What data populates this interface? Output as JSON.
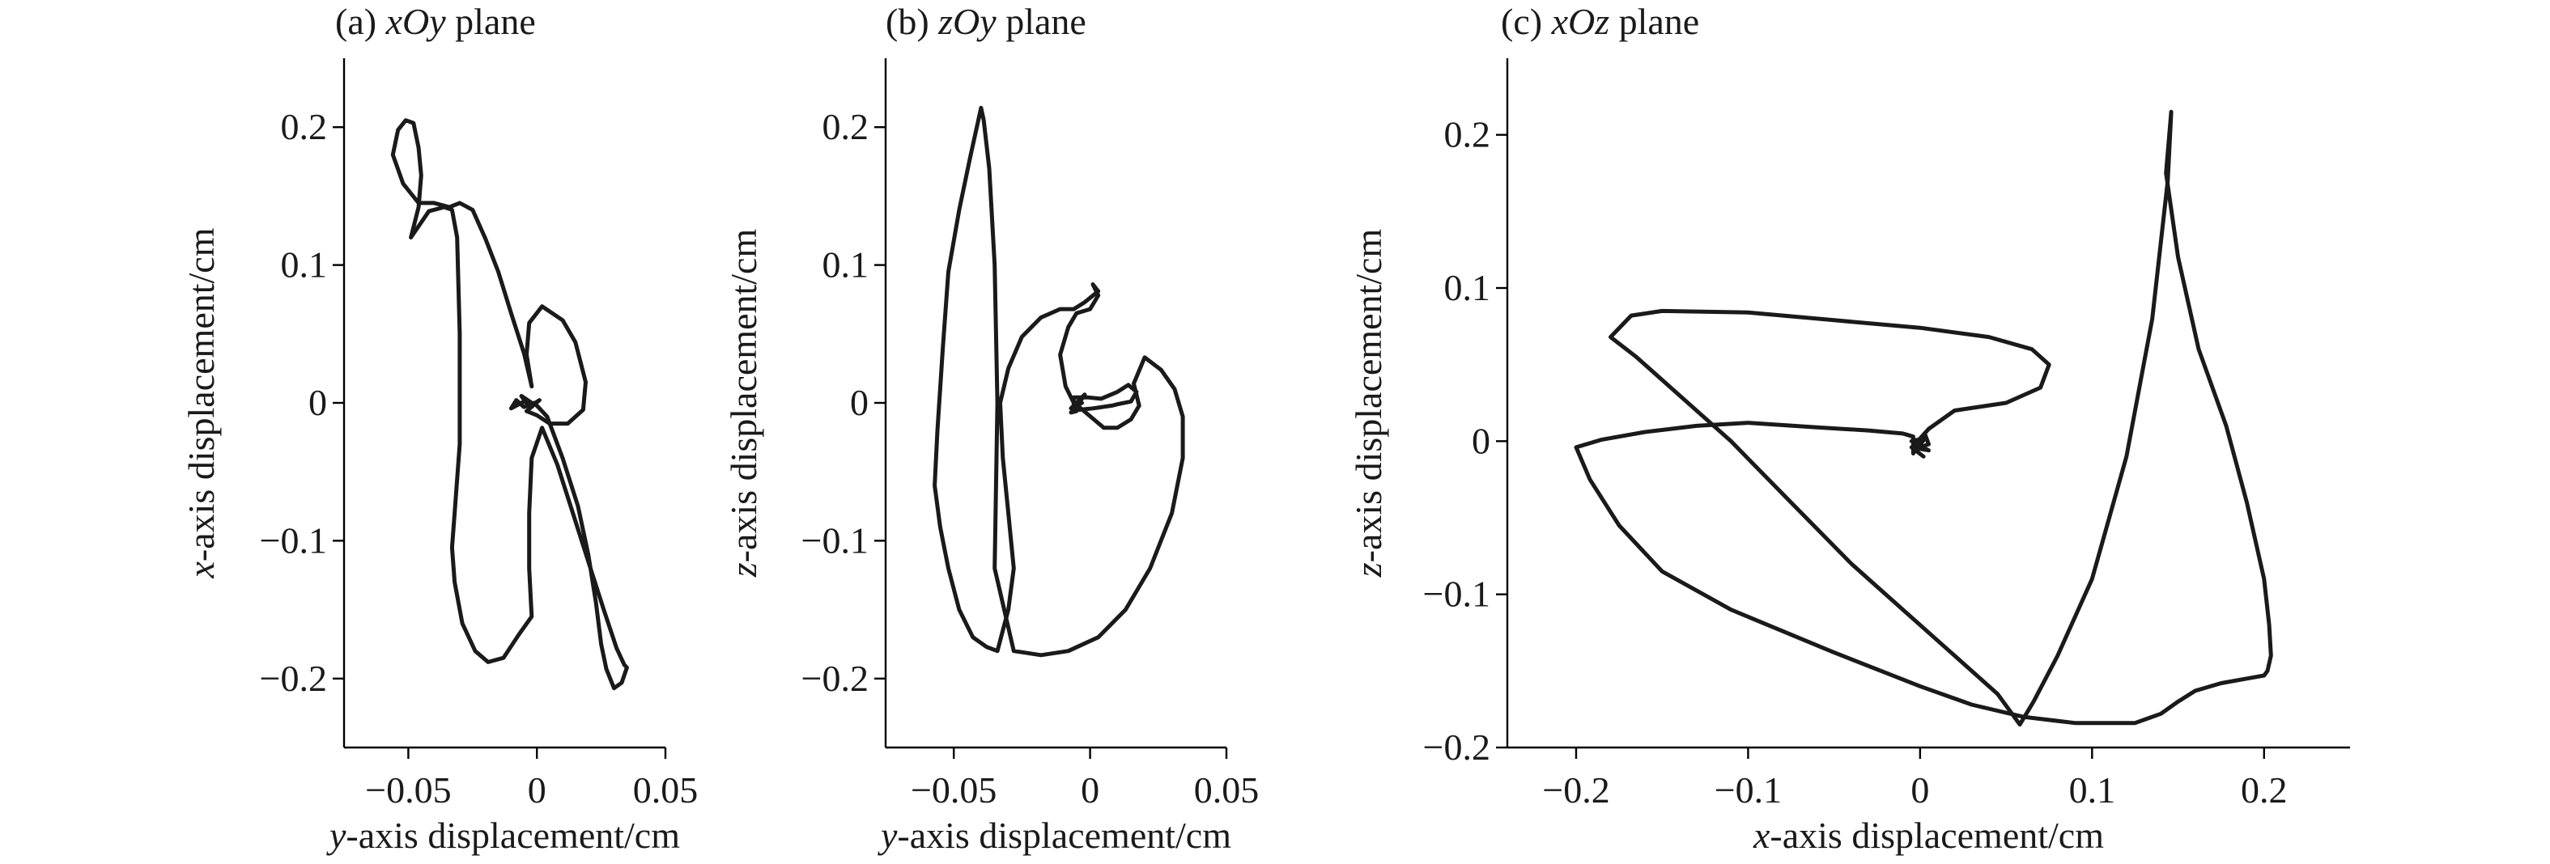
{
  "chart_data": [
    {
      "type": "line",
      "title_prefix": "(a) ",
      "title_var": "xOy",
      "title_suffix": " plane",
      "xlabel_var": "y",
      "xlabel_rest": "-axis displacement/cm",
      "ylabel_var": "x",
      "ylabel_rest": "-axis displacement/cm",
      "xlim": [
        -0.075,
        0.05
      ],
      "ylim": [
        -0.25,
        0.25
      ],
      "xticks": [
        -0.05,
        0,
        0.05
      ],
      "yticks": [
        -0.2,
        -0.1,
        0,
        0.1,
        0.2
      ],
      "xtick_labels": [
        "−0.05",
        "0",
        "0.05"
      ],
      "ytick_labels": [
        "−0.2",
        "−0.1",
        "0",
        "0.1",
        "0.2"
      ],
      "grid": false,
      "series": [
        {
          "x": [
            -0.002,
            -0.006,
            -0.003,
            0.001,
            -0.004,
            0.0,
            0.005,
            0.012,
            0.018,
            0.019,
            0.015,
            0.01,
            0.002,
            -0.003,
            -0.004,
            -0.002,
            -0.005,
            -0.01,
            -0.015,
            -0.02,
            -0.025,
            -0.03,
            -0.034,
            -0.04,
            -0.046,
            -0.052,
            -0.056,
            -0.054,
            -0.051,
            -0.048,
            -0.046,
            -0.045,
            -0.046,
            -0.049,
            -0.042,
            -0.036,
            -0.033,
            -0.031,
            -0.03,
            -0.03,
            -0.032,
            -0.033,
            -0.032,
            -0.029,
            -0.024,
            -0.019,
            -0.013,
            -0.007,
            -0.002,
            -0.003,
            -0.003,
            -0.002,
            0.002,
            0.008,
            0.014,
            0.02,
            0.026,
            0.031,
            0.034,
            0.035,
            0.033,
            0.03,
            0.027,
            0.025,
            0.023,
            0.02,
            0.016,
            0.01,
            0.004,
            -0.001,
            -0.005,
            -0.008,
            -0.01,
            -0.005
          ],
          "y": [
            0.0,
            0.005,
            -0.003,
            0.002,
            -0.006,
            -0.009,
            -0.015,
            -0.015,
            -0.005,
            0.015,
            0.044,
            0.06,
            0.07,
            0.058,
            0.035,
            0.012,
            0.036,
            0.065,
            0.095,
            0.119,
            0.14,
            0.145,
            0.142,
            0.145,
            0.145,
            0.159,
            0.18,
            0.198,
            0.205,
            0.203,
            0.185,
            0.165,
            0.142,
            0.12,
            0.139,
            0.142,
            0.14,
            0.12,
            0.05,
            -0.03,
            -0.08,
            -0.105,
            -0.13,
            -0.16,
            -0.18,
            -0.188,
            -0.185,
            -0.168,
            -0.155,
            -0.12,
            -0.08,
            -0.04,
            -0.018,
            -0.045,
            -0.08,
            -0.115,
            -0.15,
            -0.178,
            -0.19,
            -0.192,
            -0.203,
            -0.207,
            -0.193,
            -0.175,
            -0.145,
            -0.11,
            -0.075,
            -0.04,
            -0.01,
            0.0,
            -0.003,
            0.002,
            -0.004,
            0.001
          ]
        }
      ]
    },
    {
      "type": "line",
      "title_prefix": "(b) ",
      "title_var": "zOy",
      "title_suffix": " plane",
      "xlabel_var": "y",
      "xlabel_rest": "-axis displacement/cm",
      "ylabel_var": "z",
      "ylabel_rest": "-axis displacement/cm",
      "xlim": [
        -0.075,
        0.05
      ],
      "ylim": [
        -0.25,
        0.25
      ],
      "xticks": [
        -0.05,
        0,
        0.05
      ],
      "yticks": [
        -0.2,
        -0.1,
        0,
        0.1,
        0.2
      ],
      "xtick_labels": [
        "−0.05",
        "0",
        "0.05"
      ],
      "ytick_labels": [
        "−0.2",
        "−0.1",
        "0",
        "0.1",
        "0.2"
      ],
      "grid": false,
      "series": [
        {
          "x": [
            -0.003,
            -0.007,
            -0.004,
            -0.002,
            -0.006,
            -0.006,
            -0.001,
            0.004,
            0.01,
            0.014,
            0.017,
            0.015,
            0.01,
            0.008,
            0.001,
            -0.004,
            -0.006,
            -0.009,
            -0.011,
            -0.008,
            -0.005,
            0.0,
            0.003,
            0.001,
            0.003,
            -0.002,
            -0.006,
            -0.011,
            -0.018,
            -0.025,
            -0.03,
            -0.033,
            -0.032,
            -0.03,
            -0.028,
            -0.03,
            -0.034,
            -0.038,
            -0.043,
            -0.048,
            -0.052,
            -0.055,
            -0.057,
            -0.056,
            -0.054,
            -0.052,
            -0.048,
            -0.044,
            -0.04,
            -0.039,
            -0.037,
            -0.035,
            -0.034,
            -0.035,
            -0.028,
            -0.018,
            -0.008,
            0.003,
            0.013,
            0.022,
            0.03,
            0.034,
            0.034,
            0.031,
            0.026,
            0.02,
            0.016,
            0.018,
            0.015,
            0.01,
            0.005,
            -0.001,
            -0.004,
            -0.006,
            -0.007,
            -0.005
          ],
          "y": [
            0.0,
            -0.004,
            0.002,
            0.006,
            -0.006,
            0.004,
            0.004,
            0.003,
            0.008,
            0.013,
            0.008,
            0.001,
            -0.001,
            -0.002,
            -0.004,
            -0.005,
            0.0,
            0.012,
            0.035,
            0.055,
            0.065,
            0.068,
            0.078,
            0.086,
            0.081,
            0.073,
            0.068,
            0.068,
            0.062,
            0.048,
            0.025,
            0.0,
            -0.04,
            -0.08,
            -0.12,
            -0.15,
            -0.18,
            -0.177,
            -0.17,
            -0.15,
            -0.12,
            -0.09,
            -0.06,
            -0.02,
            0.04,
            0.095,
            0.14,
            0.178,
            0.214,
            0.205,
            0.17,
            0.1,
            0.0,
            -0.12,
            -0.18,
            -0.183,
            -0.18,
            -0.17,
            -0.15,
            -0.12,
            -0.08,
            -0.04,
            -0.01,
            0.01,
            0.024,
            0.033,
            0.014,
            -0.002,
            -0.012,
            -0.018,
            -0.018,
            -0.008,
            -0.003,
            -0.005,
            -0.007,
            -0.006
          ]
        }
      ]
    },
    {
      "type": "line",
      "title_prefix": "(c) ",
      "title_var": "xOz",
      "title_suffix": " plane",
      "xlabel_var": "x",
      "xlabel_rest": "-axis displacement/cm",
      "ylabel_var": "z",
      "ylabel_rest": "-axis displacement/cm",
      "xlim": [
        -0.24,
        0.25
      ],
      "ylim": [
        -0.2,
        0.25
      ],
      "xticks": [
        -0.2,
        -0.1,
        0,
        0.1,
        0.2
      ],
      "yticks": [
        -0.2,
        -0.1,
        0,
        0.1,
        0.2
      ],
      "xtick_labels": [
        "−0.2",
        "−0.1",
        "0",
        "0.1",
        "0.2"
      ],
      "ytick_labels": [
        "−0.2",
        "−0.1",
        "0",
        "0.1",
        "0.2"
      ],
      "grid": false,
      "series": [
        {
          "x": [
            -0.005,
            0.003,
            -0.002,
            0.005,
            0.003,
            -0.004,
            -0.004,
            -0.01,
            -0.03,
            -0.06,
            -0.1,
            -0.13,
            -0.16,
            -0.185,
            -0.2,
            -0.192,
            -0.175,
            -0.15,
            -0.11,
            -0.05,
            0.0,
            0.03,
            0.06,
            0.09,
            0.125,
            0.14,
            0.15,
            0.16,
            0.175,
            0.19,
            0.2,
            0.202,
            0.204,
            0.203,
            0.2,
            0.19,
            0.178,
            0.162,
            0.15,
            0.143,
            0.146,
            0.144,
            0.135,
            0.12,
            0.1,
            0.08,
            0.066,
            0.058,
            0.045,
            0.02,
            -0.01,
            -0.04,
            -0.075,
            -0.11,
            -0.14,
            -0.165,
            -0.18,
            -0.168,
            -0.15,
            -0.1,
            -0.05,
            0.0,
            0.04,
            0.065,
            0.075,
            0.07,
            0.05,
            0.02,
            0.005,
            -0.003,
            0.005,
            -0.005,
            0.002
          ],
          "y": [
            0.0,
            0.002,
            -0.005,
            -0.002,
            0.004,
            -0.008,
            0.003,
            0.005,
            0.007,
            0.009,
            0.012,
            0.01,
            0.006,
            0.001,
            -0.004,
            -0.025,
            -0.055,
            -0.085,
            -0.11,
            -0.138,
            -0.16,
            -0.172,
            -0.18,
            -0.184,
            -0.184,
            -0.178,
            -0.17,
            -0.163,
            -0.158,
            -0.155,
            -0.153,
            -0.15,
            -0.14,
            -0.12,
            -0.09,
            -0.04,
            0.01,
            0.06,
            0.12,
            0.175,
            0.215,
            0.17,
            0.08,
            -0.01,
            -0.09,
            -0.14,
            -0.17,
            -0.185,
            -0.165,
            -0.14,
            -0.11,
            -0.08,
            -0.04,
            0.0,
            0.03,
            0.055,
            0.068,
            0.082,
            0.085,
            0.084,
            0.079,
            0.074,
            0.068,
            0.06,
            0.05,
            0.035,
            0.025,
            0.02,
            0.008,
            -0.002,
            -0.006,
            -0.004,
            -0.01
          ]
        }
      ]
    }
  ]
}
